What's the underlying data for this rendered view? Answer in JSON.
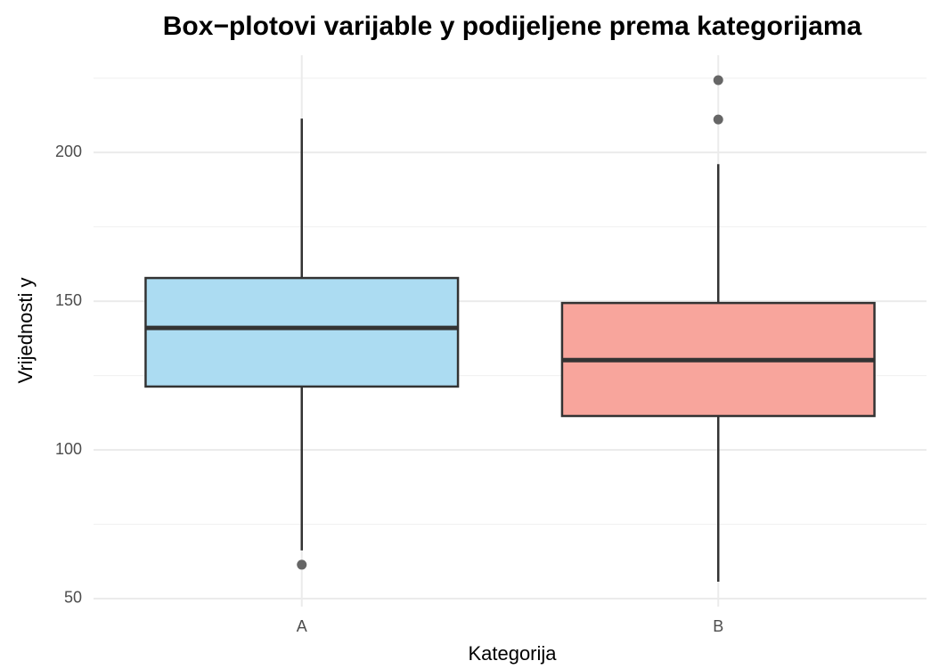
{
  "chart_data": {
    "type": "box",
    "title": "Box−plotovi varijable y podijeljene prema kategorijama",
    "x_label": "Kategorija",
    "y_label": "Vrijednosti y",
    "categories": [
      "A",
      "B"
    ],
    "boxes": [
      {
        "color": "#acdcf2",
        "whisker_low": 66.2,
        "q1": 121.3,
        "median": 141.0,
        "q3": 157.8,
        "whisker_high": 211.4,
        "outliers": [
          61.4
        ]
      },
      {
        "color": "#f8a59c",
        "whisker_low": 55.7,
        "q1": 111.4,
        "median": 130.2,
        "q3": 149.4,
        "whisker_high": 196.1,
        "outliers": [
          224.3,
          211.1
        ]
      }
    ],
    "ylim": [
      47.3,
      232.7
    ],
    "yticks": [
      50,
      100,
      150,
      200
    ],
    "yticks_minor": [
      75,
      125,
      175,
      225
    ],
    "grid": true
  }
}
